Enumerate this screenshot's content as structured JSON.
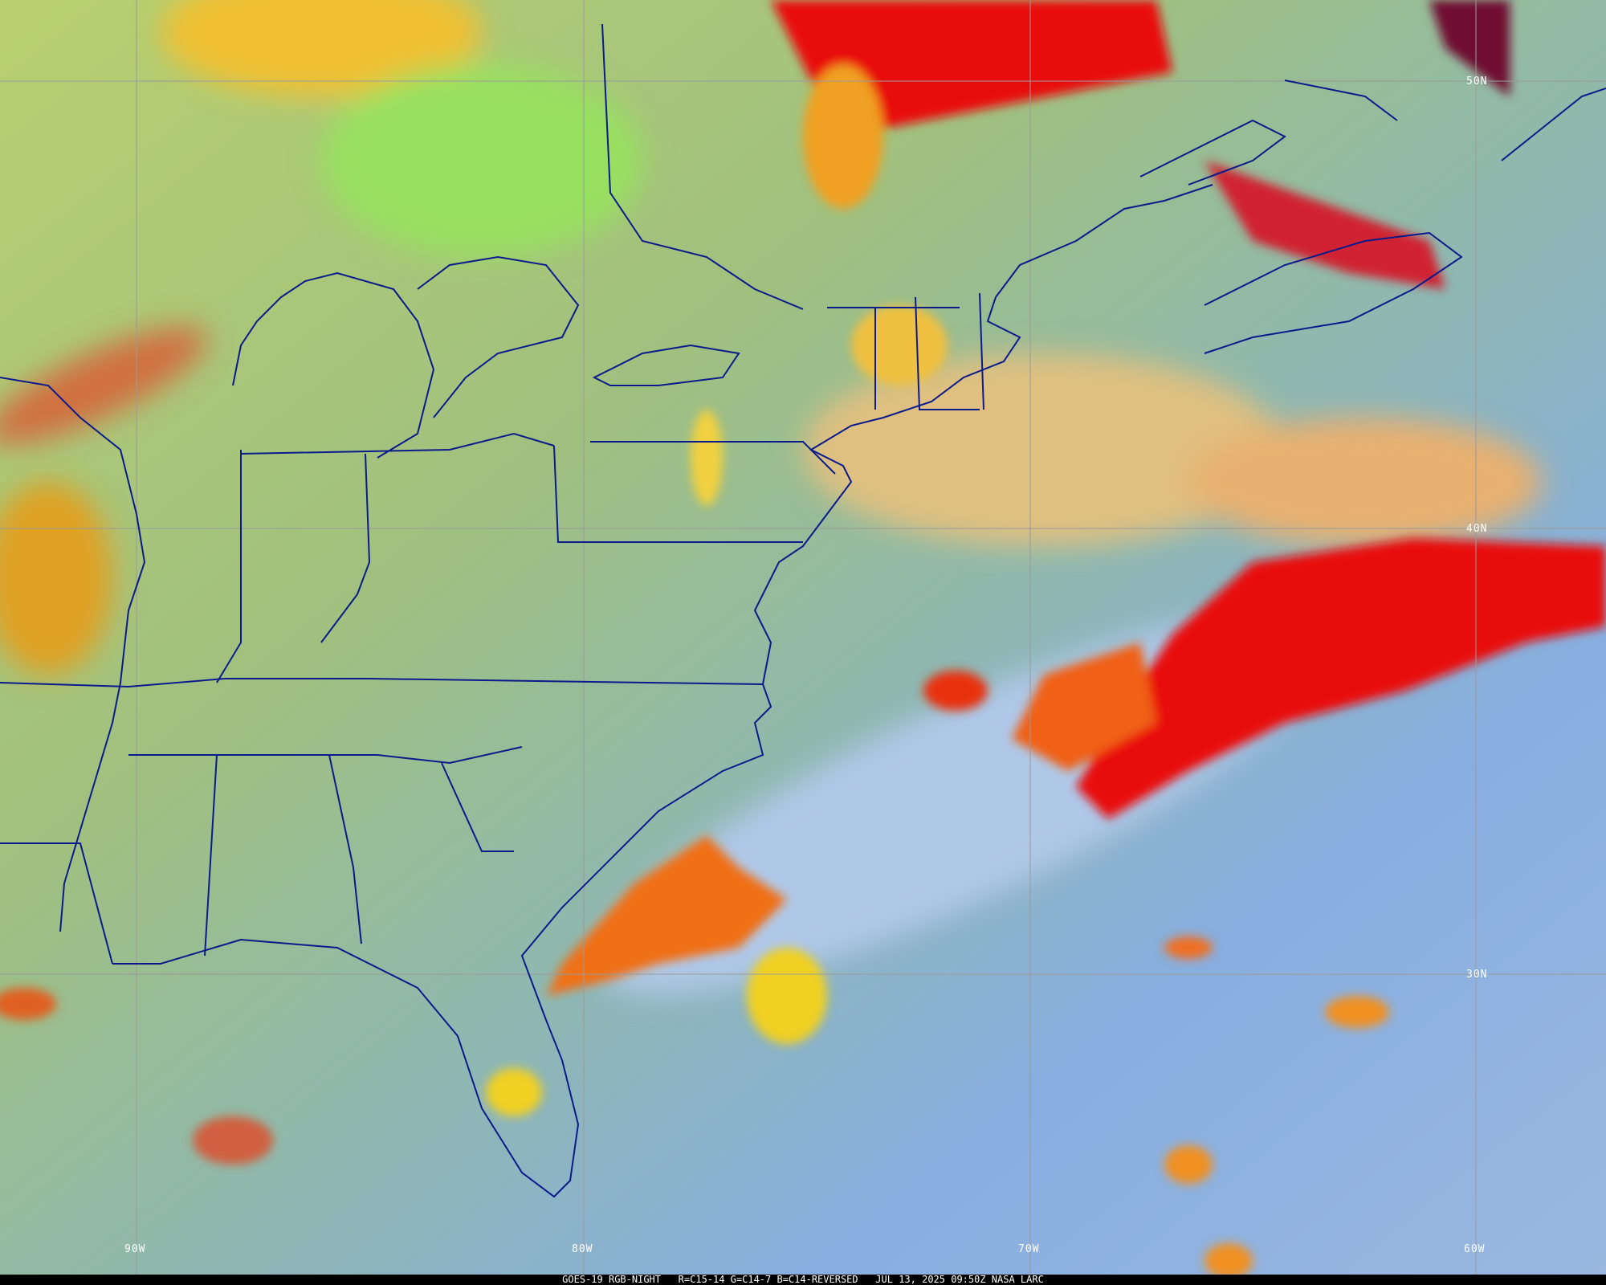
{
  "caption": "GOES-19 RGB-NIGHT   R=C15-14 G=C14-7 B=C14-REVERSED   JUL 13, 2025 09:50Z NASA LARC",
  "latitude_labels": [
    "50N",
    "40N",
    "30N"
  ],
  "longitude_labels": [
    "90W",
    "80W",
    "70W",
    "60W"
  ],
  "colors": {
    "land_clear": "#a8c878",
    "ocean_clear": "#7fa8d8",
    "high_cloud": "#e81010",
    "mid_cloud": "#f0b020",
    "boundaries": "#0a1a8a",
    "grid": "#9a9a9a"
  }
}
